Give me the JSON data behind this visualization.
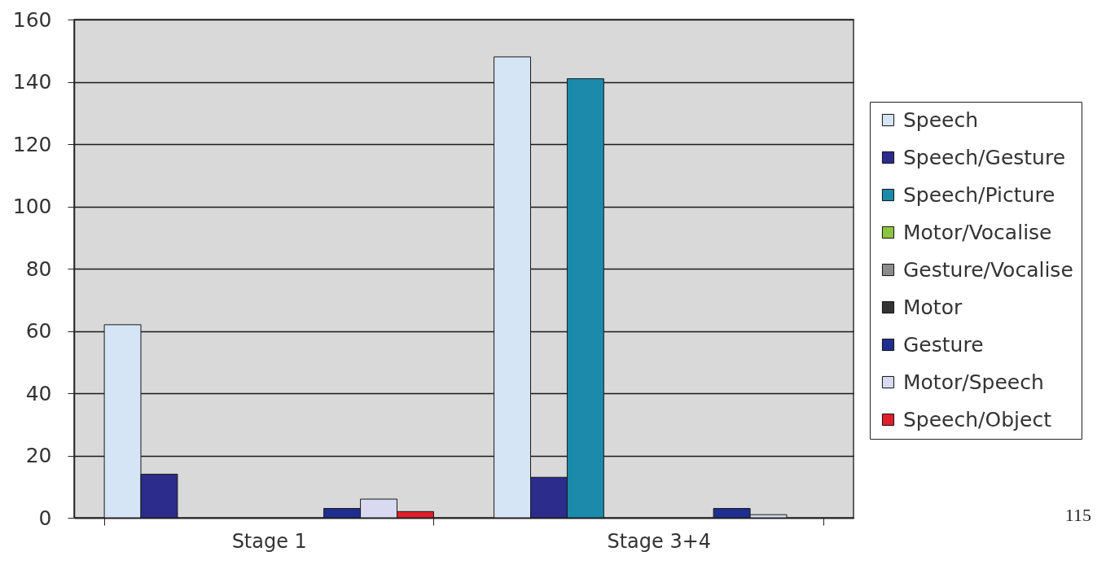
{
  "chart_data": {
    "type": "bar",
    "categories": [
      "Stage 1",
      "Stage 3+4"
    ],
    "series": [
      {
        "name": "Speech",
        "color": "#d5e5f5",
        "values": [
          62,
          148
        ]
      },
      {
        "name": "Speech/Gesture",
        "color": "#2b2c8c",
        "values": [
          14,
          13
        ]
      },
      {
        "name": "Speech/Picture",
        "color": "#1b8aab",
        "values": [
          0,
          141
        ]
      },
      {
        "name": "Motor/Vocalise",
        "color": "#8dc43f",
        "values": [
          0,
          0
        ]
      },
      {
        "name": "Gesture/Vocalise",
        "color": "#8c8c8c",
        "values": [
          0,
          0
        ]
      },
      {
        "name": "Motor",
        "color": "#333333",
        "values": [
          0,
          0
        ]
      },
      {
        "name": "Gesture",
        "color": "#1f2f8f",
        "values": [
          3,
          3
        ]
      },
      {
        "name": "Motor/Speech",
        "color": "#d9d9f0",
        "values": [
          6,
          1
        ]
      },
      {
        "name": "Speech/Object",
        "color": "#e01e2a",
        "values": [
          2,
          0
        ]
      }
    ],
    "ylim": [
      0,
      160
    ],
    "yticks": [
      0,
      20,
      40,
      60,
      80,
      100,
      120,
      140,
      160
    ],
    "grid": "y",
    "legend": "right",
    "annotations": [
      "115"
    ]
  }
}
